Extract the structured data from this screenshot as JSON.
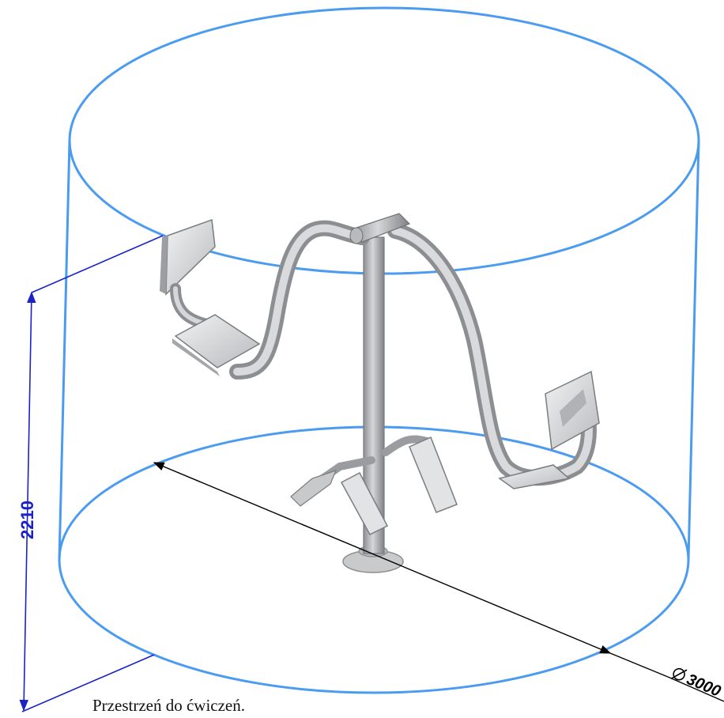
{
  "dimensions": {
    "height_label": "2210",
    "diameter_label": "3000"
  },
  "caption": "Przestrzeń do ćwiczeń.",
  "colors": {
    "envelope": "#4b9bf0",
    "height_dimension": "#1a22c8",
    "diameter_dimension": "#000000",
    "equipment": "#a9abae"
  }
}
